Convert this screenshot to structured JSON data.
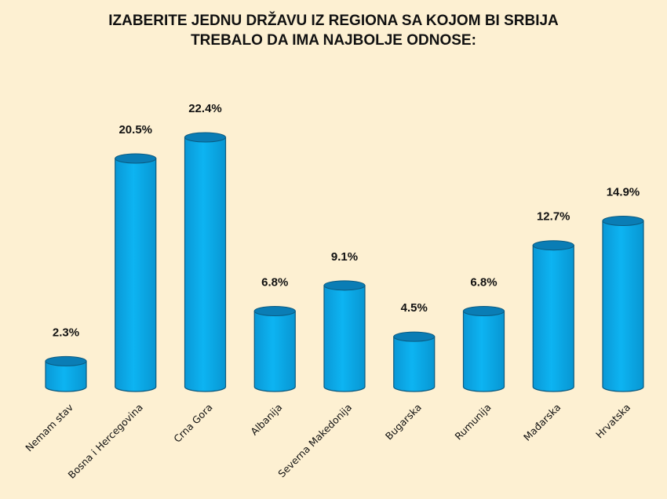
{
  "chart_data": {
    "type": "bar",
    "title_lines": [
      "IZABERITE JEDNU DRŽAVU IZ REGIONA SA KOJOM BI SRBIJA",
      "TREBALO DA IMA NAJBOLJE ODNOSE:"
    ],
    "categories": [
      "Nemam stav",
      "Bosna i Hercegovina",
      "Crna Gora",
      "Albanija",
      "Severna Makedonija",
      "Bugarska",
      "Rumunija",
      "Mađarska",
      "Hrvatska"
    ],
    "values": [
      2.3,
      20.5,
      22.4,
      6.8,
      9.1,
      4.5,
      6.8,
      12.7,
      14.9
    ],
    "value_labels": [
      "2.3%",
      "20.5%",
      "22.4%",
      "6.8%",
      "9.1%",
      "4.5%",
      "6.8%",
      "12.7%",
      "14.9%"
    ],
    "xlabel": "",
    "ylabel": "",
    "ylim": [
      0,
      22.4
    ],
    "grid": false,
    "legend": "none",
    "bar_style": "cylinder",
    "colors": {
      "bar": "#00aeef",
      "bar_top": "#0a7db5",
      "outline": "#0b5a80",
      "background": "#fdf0d2"
    }
  }
}
